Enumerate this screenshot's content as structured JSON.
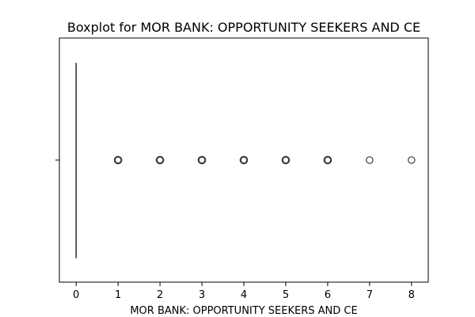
{
  "chart_data": {
    "type": "box",
    "title": "Boxplot for MOR BANK: OPPORTUNITY SEEKERS AND CE",
    "xlabel": "MOR BANK: OPPORTUNITY SEEKERS AND CE",
    "ylabel": "",
    "orientation": "horizontal",
    "xlim": [
      -0.4,
      8.4
    ],
    "xticks": [
      0,
      1,
      2,
      3,
      4,
      5,
      6,
      7,
      8
    ],
    "box": {
      "min": 0,
      "q1": 0,
      "median": 0,
      "q3": 0,
      "max": 0
    },
    "outliers": [
      1,
      2,
      3,
      4,
      5,
      6,
      7,
      8
    ],
    "grid": false,
    "legend": "none"
  }
}
